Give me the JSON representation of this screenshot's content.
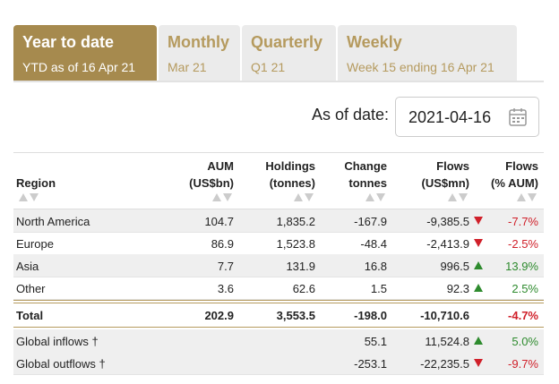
{
  "tabs": [
    {
      "title": "Year to date",
      "subtitle": "YTD as of 16 Apr 21"
    },
    {
      "title": "Monthly",
      "subtitle": "Mar 21"
    },
    {
      "title": "Quarterly",
      "subtitle": "Q1 21"
    },
    {
      "title": "Weekly",
      "subtitle": "Week 15 ending 16 Apr 21"
    }
  ],
  "date": {
    "label": "As of date:",
    "value": "2021-04-16"
  },
  "table": {
    "headers": [
      [
        "Region"
      ],
      [
        "AUM",
        "(US$bn)"
      ],
      [
        "Holdings",
        "(tonnes)"
      ],
      [
        "Change",
        "tonnes"
      ],
      [
        "Flows",
        "(US$mn)"
      ],
      [
        "Flows",
        "(% AUM)"
      ]
    ],
    "rows": [
      [
        "North America",
        "104.7",
        "1,835.2",
        "-167.9",
        "-9,385.5",
        "-7.7%"
      ],
      [
        "Europe",
        "86.9",
        "1,523.8",
        "-48.4",
        "-2,413.9",
        "-2.5%"
      ],
      [
        "Asia",
        "7.7",
        "131.9",
        "16.8",
        "996.5",
        "13.9%"
      ],
      [
        "Other",
        "3.6",
        "62.6",
        "1.5",
        "92.3",
        "2.5%"
      ]
    ],
    "total": [
      "Total",
      "202.9",
      "3,553.5",
      "-198.0",
      "-10,710.6",
      "-4.7%"
    ],
    "globals": [
      [
        "Global inflows †",
        null,
        null,
        "55.1",
        "11,524.8",
        "5.0%"
      ],
      [
        "Global outflows †",
        null,
        null,
        "-253.1",
        "-22,235.5",
        "-9.7%"
      ]
    ]
  }
}
